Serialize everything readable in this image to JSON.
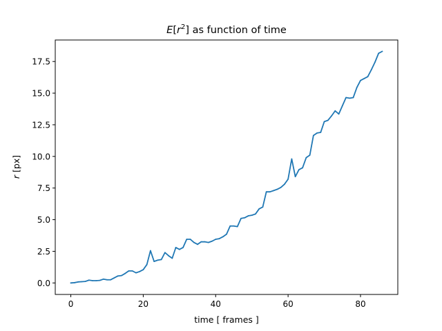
{
  "chart_data": {
    "type": "line",
    "title_parts": {
      "var": "E",
      "open": "[",
      "r": "r",
      "exp": "2",
      "close": "]",
      "rest": " as function of time"
    },
    "xlabel": "time [ frames ]",
    "ylabel_parts": {
      "var": "r",
      "rest": " [px]"
    },
    "xlim": [
      -4.3,
      90.3
    ],
    "ylim": [
      -0.91,
      19.2
    ],
    "xticks": [
      0,
      20,
      40,
      60,
      80
    ],
    "xtick_labels": [
      "0",
      "20",
      "40",
      "60",
      "80"
    ],
    "yticks": [
      0,
      2.5,
      5,
      7.5,
      10,
      12.5,
      15,
      17.5
    ],
    "ytick_labels": [
      "0.0",
      "2.5",
      "5.0",
      "7.5",
      "10.0",
      "12.5",
      "15.0",
      "17.5"
    ],
    "grid": false,
    "series": [
      {
        "color": "#1f77b4",
        "x": [
          0,
          1,
          2,
          3,
          4,
          5,
          6,
          7,
          8,
          9,
          10,
          11,
          12,
          13,
          14,
          15,
          16,
          17,
          18,
          19,
          20,
          21,
          22,
          23,
          24,
          25,
          26,
          27,
          28,
          29,
          30,
          31,
          32,
          33,
          34,
          35,
          36,
          37,
          38,
          39,
          40,
          41,
          42,
          43,
          44,
          45,
          46,
          47,
          48,
          49,
          50,
          51,
          52,
          53,
          54,
          55,
          56,
          57,
          58,
          59,
          60,
          61,
          62,
          63,
          64,
          65,
          66,
          67,
          68,
          69,
          70,
          71,
          72,
          73,
          74,
          75,
          76,
          77,
          78,
          79,
          80,
          81,
          82,
          83,
          84,
          85,
          86
        ],
        "y": [
          0.0,
          0.02,
          0.08,
          0.1,
          0.12,
          0.22,
          0.18,
          0.18,
          0.2,
          0.3,
          0.25,
          0.25,
          0.4,
          0.55,
          0.58,
          0.75,
          0.95,
          0.95,
          0.8,
          0.9,
          1.05,
          1.45,
          2.55,
          1.7,
          1.8,
          1.85,
          2.4,
          2.15,
          1.95,
          2.8,
          2.65,
          2.8,
          3.45,
          3.45,
          3.2,
          3.05,
          3.25,
          3.25,
          3.2,
          3.3,
          3.45,
          3.5,
          3.65,
          3.85,
          4.5,
          4.5,
          4.45,
          5.1,
          5.15,
          5.3,
          5.35,
          5.45,
          5.85,
          6.0,
          7.2,
          7.2,
          7.3,
          7.4,
          7.55,
          7.8,
          8.2,
          9.8,
          8.4,
          8.95,
          9.1,
          9.9,
          10.1,
          11.65,
          11.85,
          11.9,
          12.75,
          12.85,
          13.2,
          13.6,
          13.35,
          14.0,
          14.65,
          14.6,
          14.65,
          15.45,
          16.0,
          16.15,
          16.3,
          16.85,
          17.45,
          18.15,
          18.3
        ]
      }
    ]
  }
}
